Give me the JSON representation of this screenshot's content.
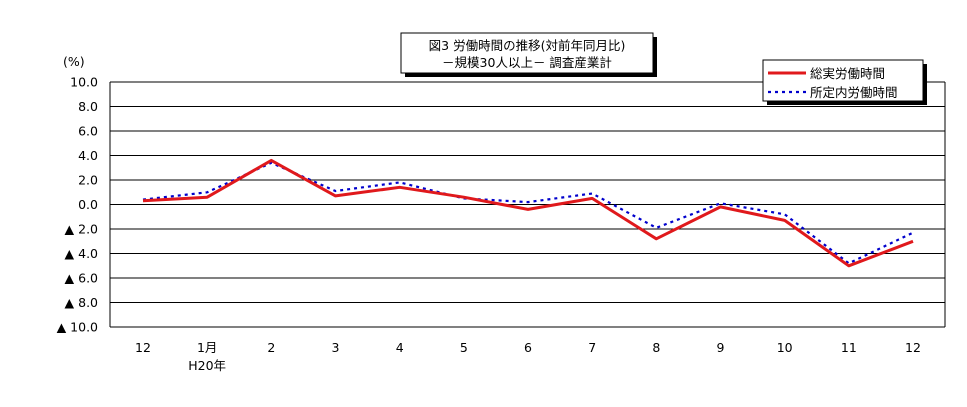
{
  "chart_data": {
    "type": "line",
    "title_line1": "図3  労働時間の推移(対前年同月比)",
    "title_line2": "－規模30人以上－  調査産業計",
    "yunit": "(%)",
    "ylim": [
      -10,
      10
    ],
    "yticks": [
      {
        "value": 10,
        "label": "10.0"
      },
      {
        "value": 8,
        "label": "8.0"
      },
      {
        "value": 6,
        "label": "6.0"
      },
      {
        "value": 4,
        "label": "4.0"
      },
      {
        "value": 2,
        "label": "2.0"
      },
      {
        "value": 0,
        "label": "0.0"
      },
      {
        "value": -2,
        "label": "▲ 2.0"
      },
      {
        "value": -4,
        "label": "▲ 4.0"
      },
      {
        "value": -6,
        "label": "▲ 6.0"
      },
      {
        "value": -8,
        "label": "▲ 8.0"
      },
      {
        "value": -10,
        "label": "▲ 10.0"
      }
    ],
    "categories": [
      "12",
      "1月",
      "2",
      "3",
      "4",
      "5",
      "6",
      "7",
      "8",
      "9",
      "10",
      "11",
      "12"
    ],
    "category_sublabels": {
      "1": "H20年"
    },
    "grid": true,
    "legend_position": "top-right",
    "series": [
      {
        "name": "総実労働時間",
        "color": "#e0191c",
        "style": "solid",
        "values": [
          0.3,
          0.6,
          3.6,
          0.7,
          1.4,
          0.6,
          -0.4,
          0.5,
          -2.8,
          -0.2,
          -1.3,
          -5.0,
          -3.0
        ]
      },
      {
        "name": "所定内労働時間",
        "color": "#0000cc",
        "style": "dotted",
        "values": [
          0.4,
          1.0,
          3.4,
          1.1,
          1.8,
          0.5,
          0.2,
          0.9,
          -1.9,
          0.1,
          -0.8,
          -4.8,
          -2.3
        ]
      }
    ]
  }
}
